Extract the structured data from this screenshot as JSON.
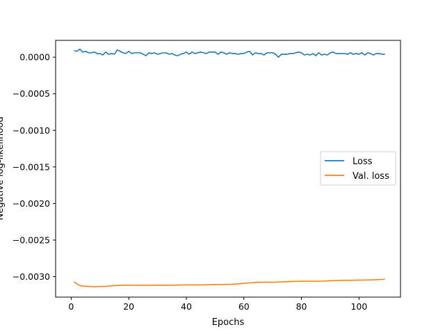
{
  "chart_data": {
    "type": "line",
    "title": "",
    "xlabel": "Epochs",
    "ylabel": "Negative log-likelihood",
    "xlim": [
      -5.4,
      114.4
    ],
    "ylim": [
      -0.00328,
      0.00023
    ],
    "xticks": [
      0,
      20,
      40,
      60,
      80,
      100
    ],
    "xtick_labels": [
      "0",
      "20",
      "40",
      "60",
      "80",
      "100"
    ],
    "yticks": [
      0.0,
      -0.0005,
      -0.001,
      -0.0015,
      -0.002,
      -0.0025,
      -0.003
    ],
    "ytick_labels": [
      "0.0000",
      "−0.0005",
      "−0.0010",
      "−0.0015",
      "−0.0020",
      "−0.0025",
      "−0.0030"
    ],
    "grid": false,
    "legend": "center-right",
    "series": [
      {
        "name": "Loss",
        "color": "#1f77b4",
        "x": [
          1,
          2,
          3,
          4,
          5,
          6,
          7,
          8,
          9,
          10,
          11,
          12,
          13,
          14,
          15,
          16,
          17,
          18,
          19,
          20,
          21,
          22,
          23,
          24,
          25,
          26,
          27,
          28,
          29,
          30,
          31,
          32,
          33,
          34,
          35,
          36,
          37,
          38,
          39,
          40,
          41,
          42,
          43,
          44,
          45,
          46,
          47,
          48,
          49,
          50,
          51,
          52,
          53,
          54,
          55,
          56,
          57,
          58,
          59,
          60,
          61,
          62,
          63,
          64,
          65,
          66,
          67,
          68,
          69,
          70,
          71,
          72,
          73,
          74,
          75,
          76,
          77,
          78,
          79,
          80,
          81,
          82,
          83,
          84,
          85,
          86,
          87,
          88,
          89,
          90,
          91,
          92,
          93,
          94,
          95,
          96,
          97,
          98,
          99,
          100,
          101,
          102,
          103,
          104,
          105,
          106,
          107,
          108,
          109
        ],
        "values": [
          9e-05,
          8e-05,
          0.00011,
          7e-05,
          8e-05,
          6e-05,
          6e-05,
          7e-05,
          5e-05,
          5e-05,
          3e-05,
          7e-05,
          4e-05,
          5e-05,
          4e-05,
          0.0001,
          8e-05,
          6e-05,
          5e-05,
          8e-05,
          5e-05,
          6e-05,
          6e-05,
          6e-05,
          4e-05,
          2e-05,
          6e-05,
          5e-05,
          6e-05,
          4e-05,
          5e-05,
          6e-05,
          6e-05,
          4e-05,
          5e-05,
          3e-05,
          2e-05,
          4e-05,
          5e-05,
          7e-05,
          4e-05,
          7e-05,
          5e-05,
          6e-05,
          7e-05,
          6e-05,
          5e-05,
          7e-05,
          7e-05,
          7e-05,
          4e-05,
          7e-05,
          6e-05,
          4e-05,
          6e-05,
          5e-05,
          5e-05,
          4e-05,
          5e-05,
          5e-05,
          7e-05,
          8e-05,
          3e-05,
          6e-05,
          5e-05,
          5e-05,
          3e-05,
          6e-05,
          6e-05,
          6e-05,
          4e-05,
          0.0,
          4e-05,
          4e-05,
          4e-05,
          5e-05,
          5e-05,
          6e-05,
          7e-05,
          6e-05,
          3e-05,
          4e-05,
          3e-05,
          5e-05,
          2e-05,
          6e-05,
          3e-05,
          4e-05,
          3e-05,
          6e-05,
          7e-05,
          5e-05,
          5e-05,
          5e-05,
          5e-05,
          4e-05,
          6e-05,
          4e-05,
          5e-05,
          4e-05,
          6e-05,
          3e-05,
          6e-05,
          5e-05,
          3e-05,
          5e-05,
          5e-05,
          4e-05,
          4e-05
        ]
      },
      {
        "name": "Val. loss",
        "color": "#ff7f0e",
        "x": [
          1,
          2,
          3,
          4,
          5,
          6,
          7,
          8,
          9,
          10,
          12,
          14,
          16,
          18,
          20,
          25,
          30,
          35,
          40,
          45,
          50,
          55,
          58,
          60,
          62,
          65,
          68,
          70,
          72,
          75,
          80,
          85,
          88,
          90,
          95,
          100,
          105,
          109
        ],
        "values": [
          -0.00307,
          -0.0031,
          -0.00312,
          -0.00313,
          -0.003131,
          -0.003134,
          -0.003137,
          -0.003138,
          -0.003138,
          -0.003136,
          -0.003133,
          -0.003126,
          -0.003121,
          -0.003117,
          -0.003117,
          -0.003119,
          -0.003117,
          -0.003117,
          -0.003113,
          -0.003113,
          -0.003108,
          -0.003106,
          -0.0031,
          -0.00309,
          -0.003085,
          -0.003077,
          -0.003075,
          -0.003077,
          -0.003073,
          -0.003068,
          -0.003063,
          -0.003063,
          -0.00306,
          -0.003056,
          -0.00305,
          -0.003048,
          -0.003044,
          -0.003035
        ]
      }
    ]
  }
}
